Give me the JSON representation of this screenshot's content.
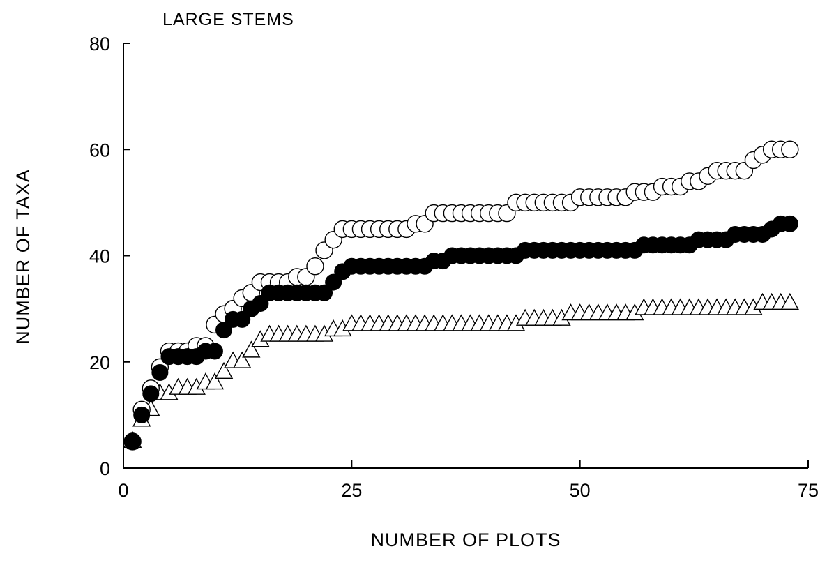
{
  "chart_data": {
    "type": "scatter",
    "title": "LARGE STEMS",
    "xlabel": "NUMBER OF PLOTS",
    "ylabel": "NUMBER OF TAXA",
    "xlim": [
      0,
      75
    ],
    "ylim": [
      0,
      80
    ],
    "xticks": [
      0,
      25,
      50,
      75
    ],
    "yticks": [
      0,
      20,
      40,
      60,
      80
    ],
    "grid": false,
    "legend": "none",
    "series": [
      {
        "marker": "open-circle",
        "x": [
          1,
          2,
          3,
          4,
          5,
          6,
          7,
          8,
          9,
          10,
          11,
          12,
          13,
          14,
          15,
          16,
          17,
          18,
          19,
          20,
          21,
          22,
          23,
          24,
          25,
          26,
          27,
          28,
          29,
          30,
          31,
          32,
          33,
          34,
          35,
          36,
          37,
          38,
          39,
          40,
          41,
          42,
          43,
          44,
          45,
          46,
          47,
          48,
          49,
          50,
          51,
          52,
          53,
          54,
          55,
          56,
          57,
          58,
          59,
          60,
          61,
          62,
          63,
          64,
          65,
          66,
          67,
          68,
          69,
          70,
          71,
          72,
          73
        ],
        "values": [
          5,
          11,
          15,
          19,
          22,
          22,
          22,
          23,
          23,
          27,
          29,
          30,
          32,
          33,
          35,
          35,
          35,
          35,
          36,
          36,
          38,
          41,
          43,
          45,
          45,
          45,
          45,
          45,
          45,
          45,
          45,
          46,
          46,
          48,
          48,
          48,
          48,
          48,
          48,
          48,
          48,
          48,
          50,
          50,
          50,
          50,
          50,
          50,
          50,
          51,
          51,
          51,
          51,
          51,
          51,
          52,
          52,
          52,
          53,
          53,
          53,
          54,
          54,
          55,
          56,
          56,
          56,
          56,
          58,
          59,
          60,
          60,
          60
        ]
      },
      {
        "marker": "filled-circle",
        "x": [
          1,
          2,
          3,
          4,
          5,
          6,
          7,
          8,
          9,
          10,
          11,
          12,
          13,
          14,
          15,
          16,
          17,
          18,
          19,
          20,
          21,
          22,
          23,
          24,
          25,
          26,
          27,
          28,
          29,
          30,
          31,
          32,
          33,
          34,
          35,
          36,
          37,
          38,
          39,
          40,
          41,
          42,
          43,
          44,
          45,
          46,
          47,
          48,
          49,
          50,
          51,
          52,
          53,
          54,
          55,
          56,
          57,
          58,
          59,
          60,
          61,
          62,
          63,
          64,
          65,
          66,
          67,
          68,
          69,
          70,
          71,
          72,
          73
        ],
        "values": [
          5,
          10,
          14,
          18,
          21,
          21,
          21,
          21,
          22,
          22,
          26,
          28,
          28,
          30,
          31,
          33,
          33,
          33,
          33,
          33,
          33,
          33,
          35,
          37,
          38,
          38,
          38,
          38,
          38,
          38,
          38,
          38,
          38,
          39,
          39,
          40,
          40,
          40,
          40,
          40,
          40,
          40,
          40,
          41,
          41,
          41,
          41,
          41,
          41,
          41,
          41,
          41,
          41,
          41,
          41,
          41,
          42,
          42,
          42,
          42,
          42,
          42,
          43,
          43,
          43,
          43,
          44,
          44,
          44,
          44,
          45,
          46,
          46
        ]
      },
      {
        "marker": "open-triangle",
        "x": [
          1,
          2,
          3,
          4,
          5,
          6,
          7,
          8,
          9,
          10,
          11,
          12,
          13,
          14,
          15,
          16,
          17,
          18,
          19,
          20,
          21,
          22,
          23,
          24,
          25,
          26,
          27,
          28,
          29,
          30,
          31,
          32,
          33,
          34,
          35,
          36,
          37,
          38,
          39,
          40,
          41,
          42,
          43,
          44,
          45,
          46,
          47,
          48,
          49,
          50,
          51,
          52,
          53,
          54,
          55,
          56,
          57,
          58,
          59,
          60,
          61,
          62,
          63,
          64,
          65,
          66,
          67,
          68,
          69,
          70,
          71,
          72,
          73
        ],
        "values": [
          5,
          9,
          11,
          14,
          14,
          15,
          15,
          15,
          16,
          16,
          18,
          20,
          20,
          22,
          24,
          25,
          25,
          25,
          25,
          25,
          25,
          25,
          26,
          26,
          27,
          27,
          27,
          27,
          27,
          27,
          27,
          27,
          27,
          27,
          27,
          27,
          27,
          27,
          27,
          27,
          27,
          27,
          27,
          28,
          28,
          28,
          28,
          28,
          29,
          29,
          29,
          29,
          29,
          29,
          29,
          29,
          30,
          30,
          30,
          30,
          30,
          30,
          30,
          30,
          30,
          30,
          30,
          30,
          30,
          31,
          31,
          31,
          31
        ]
      }
    ]
  }
}
